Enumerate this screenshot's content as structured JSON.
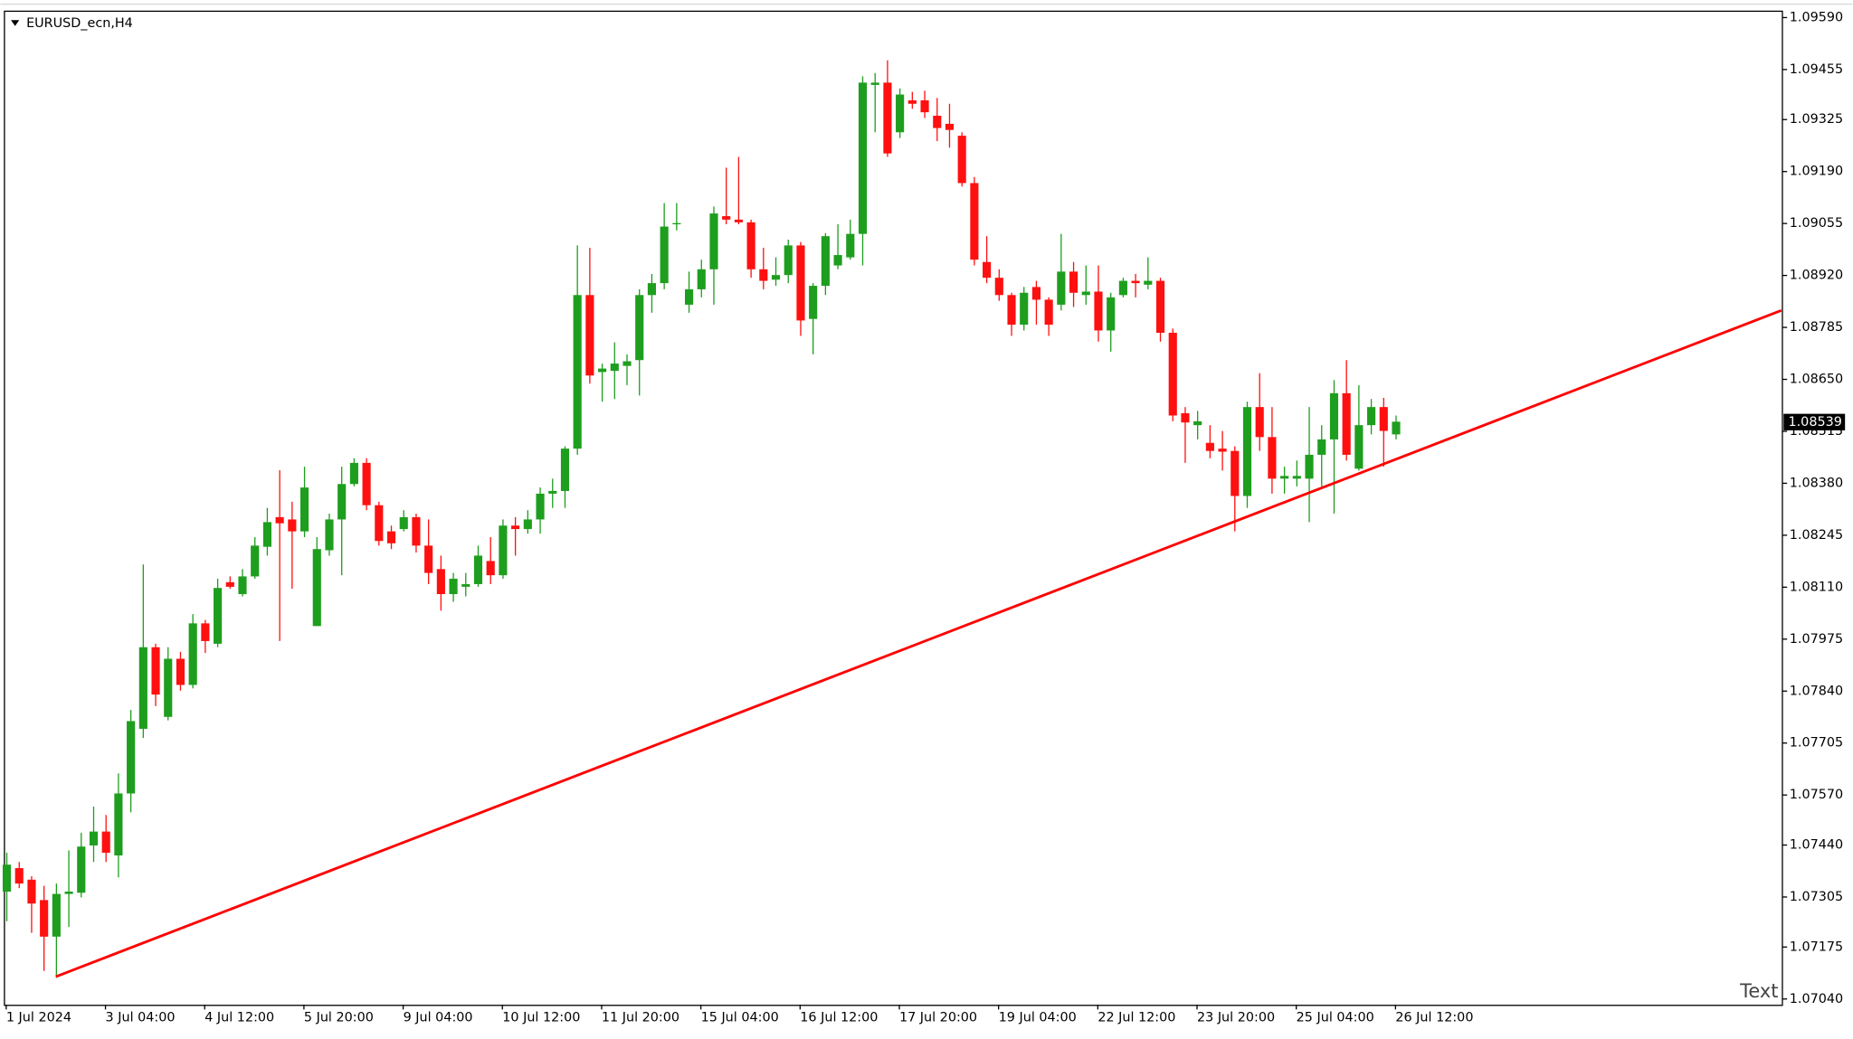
{
  "chart_data": {
    "type": "candlestick",
    "title": "EURUSD_ecn,H4",
    "annotation": "Text",
    "categories": [
      "1 Jul 2024",
      null,
      null,
      null,
      null,
      null,
      null,
      null,
      "3 Jul 04:00",
      null,
      null,
      null,
      null,
      null,
      null,
      null,
      "4 Jul 12:00",
      null,
      null,
      null,
      null,
      null,
      null,
      null,
      "5 Jul 20:00",
      null,
      null,
      null,
      null,
      null,
      null,
      null,
      "9 Jul 04:00",
      null,
      null,
      null,
      null,
      null,
      null,
      null,
      "10 Jul 12:00",
      null,
      null,
      null,
      null,
      null,
      null,
      null,
      "11 Jul 20:00",
      null,
      null,
      null,
      null,
      null,
      null,
      null,
      "15 Jul 04:00",
      null,
      null,
      null,
      null,
      null,
      null,
      null,
      "16 Jul 12:00",
      null,
      null,
      null,
      null,
      null,
      null,
      null,
      "17 Jul 20:00",
      null,
      null,
      null,
      null,
      null,
      null,
      null,
      "19 Jul 04:00",
      null,
      null,
      null,
      null,
      null,
      null,
      null,
      "22 Jul 12:00",
      null,
      null,
      null,
      null,
      null,
      null,
      null,
      "23 Jul 20:00",
      null,
      null,
      null,
      null,
      null,
      null,
      null,
      "25 Jul 04:00",
      null,
      null,
      null,
      null,
      null,
      null,
      null,
      "26 Jul 12:00"
    ],
    "open": [
      1.07319,
      1.0738,
      1.0735,
      1.07297,
      1.07202,
      1.07313,
      1.07316,
      1.07439,
      1.07475,
      1.07413,
      1.07574,
      1.07742,
      1.07954,
      1.07773,
      1.07924,
      1.07856,
      1.08016,
      1.07963,
      1.08123,
      1.08092,
      1.08138,
      1.08215,
      1.08292,
      1.08286,
      1.08255,
      1.08009,
      1.08206,
      1.08286,
      1.08378,
      1.08433,
      1.08323,
      1.08255,
      1.08261,
      1.08292,
      1.08218,
      1.08157,
      1.08092,
      1.08111,
      1.08118,
      1.08178,
      1.08141,
      1.0827,
      1.08261,
      1.08286,
      1.08353,
      1.0836,
      1.0847,
      1.08869,
      1.08669,
      1.08672,
      1.08685,
      1.087,
      1.08869,
      1.089,
      1.09053,
      1.08844,
      1.08884,
      1.08936,
      1.09074,
      1.09065,
      1.09058,
      1.08936,
      1.08909,
      1.08921,
      1.08998,
      1.08807,
      1.08893,
      1.08946,
      1.08967,
      1.09028,
      1.09415,
      1.09421,
      1.09292,
      1.09375,
      1.09375,
      1.09335,
      1.09314,
      1.09283,
      1.0916,
      1.08955,
      1.08914,
      1.08869,
      1.08792,
      1.0889,
      1.08857,
      1.08844,
      1.0893,
      1.08869,
      1.08878,
      1.08777,
      1.08869,
      1.08906,
      1.08896,
      1.08906,
      1.08771,
      1.08562,
      1.08531,
      1.08485,
      1.0847,
      1.08464,
      1.08347,
      1.08578,
      1.085,
      1.08392,
      1.08392,
      1.08392,
      1.08454,
      1.08494,
      1.08614,
      1.08418,
      1.08531,
      1.08578,
      1.08507
    ],
    "high": [
      1.0742,
      1.07396,
      1.07359,
      1.07334,
      1.0734,
      1.07426,
      1.07472,
      1.0754,
      1.07518,
      1.07626,
      1.07791,
      1.08169,
      1.07963,
      1.07954,
      1.07942,
      1.0804,
      1.08025,
      1.08132,
      1.08138,
      1.08157,
      1.0824,
      1.08316,
      1.08414,
      1.08332,
      1.08423,
      1.0824,
      1.08301,
      1.08423,
      1.08445,
      1.08445,
      1.08332,
      1.0827,
      1.0831,
      1.08301,
      1.08286,
      1.08192,
      1.08147,
      1.08147,
      1.08218,
      1.0824,
      1.08286,
      1.08292,
      1.0831,
      1.08369,
      1.08392,
      1.08476,
      1.08998,
      1.08992,
      1.08691,
      1.08746,
      1.08715,
      1.08884,
      1.08924,
      1.09108,
      1.09108,
      1.0893,
      1.08961,
      1.09099,
      1.092,
      1.09228,
      1.09065,
      1.08992,
      1.08967,
      1.09013,
      1.09007,
      1.089,
      1.0903,
      1.09053,
      1.09065,
      1.09437,
      1.09446,
      1.09479,
      1.09406,
      1.09397,
      1.094,
      1.09381,
      1.09366,
      1.09292,
      1.09176,
      1.09022,
      1.08936,
      1.08875,
      1.0889,
      1.08906,
      1.08863,
      1.09028,
      1.08955,
      1.08946,
      1.08946,
      1.08875,
      1.08914,
      1.08924,
      1.08967,
      1.08914,
      1.08782,
      1.08578,
      1.08568,
      1.08531,
      1.08516,
      1.08476,
      1.08592,
      1.08666,
      1.08578,
      1.08423,
      1.08439,
      1.08578,
      1.08531,
      1.08648,
      1.087,
      1.08635,
      1.08599,
      1.08602,
      1.08556
    ],
    "low": [
      1.07242,
      1.07328,
      1.07212,
      1.07113,
      1.07095,
      1.07227,
      1.07304,
      1.07396,
      1.07396,
      1.07356,
      1.07525,
      1.07718,
      1.07801,
      1.07764,
      1.07841,
      1.07847,
      1.07939,
      1.07954,
      1.08106,
      1.08086,
      1.08132,
      1.08192,
      1.0797,
      1.08106,
      1.0824,
      1.08009,
      1.08192,
      1.08141,
      1.08372,
      1.0831,
      1.08218,
      1.08209,
      1.08255,
      1.082,
      1.08118,
      1.08049,
      1.08072,
      1.08086,
      1.08111,
      1.08118,
      1.08132,
      1.08192,
      1.08249,
      1.08249,
      1.08316,
      1.08316,
      1.08454,
      1.08639,
      1.08592,
      1.08599,
      1.08635,
      1.08608,
      1.08823,
      1.08884,
      1.09037,
      1.08823,
      1.08863,
      1.08844,
      1.09053,
      1.09053,
      1.08914,
      1.08884,
      1.08893,
      1.089,
      1.08763,
      1.08715,
      1.08869,
      1.08936,
      1.08961,
      1.08946,
      1.09292,
      1.09228,
      1.09277,
      1.09353,
      1.09329,
      1.09269,
      1.09252,
      1.09151,
      1.08946,
      1.089,
      1.08854,
      1.08763,
      1.08777,
      1.08792,
      1.08763,
      1.08829,
      1.08838,
      1.08844,
      1.08748,
      1.08722,
      1.08863,
      1.08863,
      1.08884,
      1.08748,
      1.08541,
      1.08433,
      1.08494,
      1.08445,
      1.08413,
      1.08255,
      1.08316,
      1.08464,
      1.08353,
      1.08353,
      1.08372,
      1.08279,
      1.08372,
      1.08301,
      1.08439,
      1.08413,
      1.08507,
      1.08423,
      1.08494
    ],
    "close": [
      1.07389,
      1.0734,
      1.07288,
      1.07202,
      1.07313,
      1.07319,
      1.07436,
      1.07475,
      1.0742,
      1.07574,
      1.07762,
      1.07954,
      1.07831,
      1.07924,
      1.07856,
      1.08016,
      1.0797,
      1.08108,
      1.08111,
      1.08138,
      1.08218,
      1.08279,
      1.08276,
      1.08255,
      1.08369,
      1.08209,
      1.08286,
      1.08378,
      1.08433,
      1.08323,
      1.0823,
      1.08224,
      1.08292,
      1.08218,
      1.08147,
      1.08092,
      1.08132,
      1.08118,
      1.08192,
      1.08141,
      1.0827,
      1.08261,
      1.08286,
      1.08353,
      1.0836,
      1.0847,
      1.08869,
      1.0866,
      1.08678,
      1.08691,
      1.08697,
      1.08869,
      1.089,
      1.09047,
      1.09056,
      1.08884,
      1.08936,
      1.09081,
      1.09065,
      1.09058,
      1.08936,
      1.08906,
      1.08921,
      1.08998,
      1.08803,
      1.08893,
      1.09022,
      1.08973,
      1.09028,
      1.09421,
      1.09421,
      1.09237,
      1.0939,
      1.09366,
      1.09344,
      1.09303,
      1.09298,
      1.0916,
      1.08961,
      1.08914,
      1.08869,
      1.08792,
      1.08875,
      1.08857,
      1.08792,
      1.0893,
      1.08875,
      1.08878,
      1.08777,
      1.08863,
      1.08906,
      1.089,
      1.08906,
      1.08771,
      1.08556,
      1.08538,
      1.08541,
      1.08464,
      1.08462,
      1.08347,
      1.08578,
      1.085,
      1.08392,
      1.08399,
      1.08399,
      1.08454,
      1.08494,
      1.08614,
      1.08454,
      1.08531,
      1.08578,
      1.08516,
      1.0854
    ],
    "up_color": "#1e9e1e",
    "down_color": "#ff1010",
    "last_price": 1.08539,
    "trendline": {
      "x": [
        4,
        143.1
      ],
      "values": [
        1.07098,
        1.08829
      ],
      "color": "#ff0000"
    },
    "ylim": [
      1.07025,
      1.09605
    ],
    "yticks": [
      {
        "value": 1.0959,
        "label": "1.09590"
      },
      {
        "value": 1.09455,
        "label": "1.09455"
      },
      {
        "value": 1.09325,
        "label": "1.09325"
      },
      {
        "value": 1.0919,
        "label": "1.09190"
      },
      {
        "value": 1.09055,
        "label": "1.09055"
      },
      {
        "value": 1.0892,
        "label": "1.08920"
      },
      {
        "value": 1.08785,
        "label": "1.08785"
      },
      {
        "value": 1.0865,
        "label": "1.08650"
      },
      {
        "value": 1.08515,
        "label": "1.08515"
      },
      {
        "value": 1.0838,
        "label": "1.08380"
      },
      {
        "value": 1.08245,
        "label": "1.08245"
      },
      {
        "value": 1.0811,
        "label": "1.08110"
      },
      {
        "value": 1.07975,
        "label": "1.07975"
      },
      {
        "value": 1.0784,
        "label": "1.07840"
      },
      {
        "value": 1.07705,
        "label": "1.07705"
      },
      {
        "value": 1.0757,
        "label": "1.07570"
      },
      {
        "value": 1.0744,
        "label": "1.07440"
      },
      {
        "value": 1.07305,
        "label": "1.07305"
      },
      {
        "value": 1.07175,
        "label": "1.07175"
      },
      {
        "value": 1.0704,
        "label": "1.07040"
      }
    ],
    "grid": false
  }
}
